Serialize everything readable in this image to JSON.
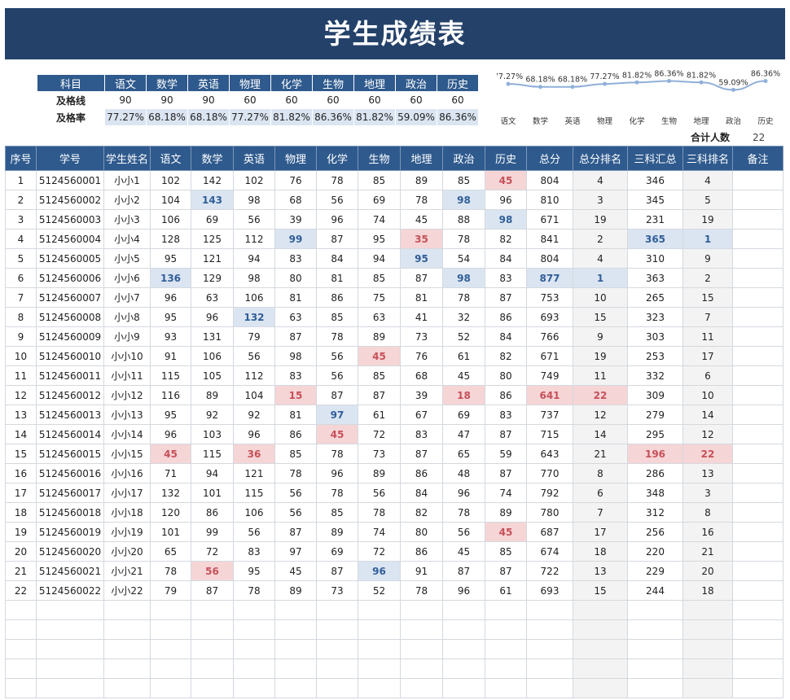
{
  "title": "学生成绩表",
  "summary": {
    "header_label": "科目",
    "subjects": [
      "语文",
      "数学",
      "英语",
      "物理",
      "化学",
      "生物",
      "地理",
      "政治",
      "历史"
    ],
    "pass_line_label": "及格线",
    "pass_lines": [
      "90",
      "90",
      "90",
      "60",
      "60",
      "60",
      "60",
      "60",
      "60"
    ],
    "pass_rate_label": "及格率",
    "pass_rates": [
      "77.27%",
      "68.18%",
      "68.18%",
      "77.27%",
      "81.82%",
      "86.36%",
      "81.82%",
      "59.09%",
      "86.36%"
    ]
  },
  "chart_data": {
    "type": "line",
    "categories": [
      "语文",
      "数学",
      "英语",
      "物理",
      "化学",
      "生物",
      "地理",
      "政治",
      "历史"
    ],
    "values": [
      77.27,
      68.18,
      68.18,
      77.27,
      81.82,
      86.36,
      81.82,
      59.09,
      86.36
    ],
    "data_labels": [
      "77.27%",
      "68.18%",
      "68.18%",
      "77.27%",
      "81.82%",
      "86.36%",
      "81.82%",
      "59.09%",
      "86.36%"
    ],
    "title": "",
    "xlabel": "",
    "ylabel": "",
    "grid": false,
    "line_color": "#8fb0d8"
  },
  "total": {
    "label": "合计人数",
    "value": "22"
  },
  "table": {
    "headers": [
      "序号",
      "学号",
      "学生姓名",
      "语文",
      "数学",
      "英语",
      "物理",
      "化学",
      "生物",
      "地理",
      "政治",
      "历史",
      "总分",
      "总分排名",
      "三科汇总",
      "三科排名",
      "备注"
    ],
    "rows": [
      [
        "1",
        "5124560001",
        "小小1",
        "102",
        "142",
        "102",
        "76",
        "78",
        "85",
        "89",
        "85",
        "45",
        "804",
        "4",
        "346",
        "4",
        ""
      ],
      [
        "2",
        "5124560002",
        "小小2",
        "104",
        "143",
        "98",
        "68",
        "56",
        "69",
        "78",
        "98",
        "96",
        "810",
        "3",
        "345",
        "5",
        ""
      ],
      [
        "3",
        "5124560003",
        "小小3",
        "106",
        "69",
        "56",
        "39",
        "96",
        "74",
        "45",
        "88",
        "98",
        "671",
        "19",
        "231",
        "19",
        ""
      ],
      [
        "4",
        "5124560004",
        "小小4",
        "128",
        "125",
        "112",
        "99",
        "87",
        "95",
        "35",
        "78",
        "82",
        "841",
        "2",
        "365",
        "1",
        ""
      ],
      [
        "5",
        "5124560005",
        "小小5",
        "95",
        "121",
        "94",
        "83",
        "84",
        "94",
        "95",
        "54",
        "84",
        "804",
        "4",
        "310",
        "9",
        ""
      ],
      [
        "6",
        "5124560006",
        "小小6",
        "136",
        "129",
        "98",
        "80",
        "81",
        "85",
        "87",
        "98",
        "83",
        "877",
        "1",
        "363",
        "2",
        ""
      ],
      [
        "7",
        "5124560007",
        "小小7",
        "96",
        "63",
        "106",
        "81",
        "86",
        "75",
        "81",
        "78",
        "87",
        "753",
        "10",
        "265",
        "15",
        ""
      ],
      [
        "8",
        "5124560008",
        "小小8",
        "95",
        "96",
        "132",
        "63",
        "85",
        "63",
        "41",
        "32",
        "86",
        "693",
        "15",
        "323",
        "7",
        ""
      ],
      [
        "9",
        "5124560009",
        "小小9",
        "93",
        "131",
        "79",
        "87",
        "78",
        "89",
        "73",
        "52",
        "84",
        "766",
        "9",
        "303",
        "11",
        ""
      ],
      [
        "10",
        "5124560010",
        "小小10",
        "91",
        "106",
        "56",
        "98",
        "56",
        "45",
        "76",
        "61",
        "82",
        "671",
        "19",
        "253",
        "17",
        ""
      ],
      [
        "11",
        "5124560011",
        "小小11",
        "115",
        "105",
        "112",
        "83",
        "56",
        "85",
        "68",
        "45",
        "80",
        "749",
        "11",
        "332",
        "6",
        ""
      ],
      [
        "12",
        "5124560012",
        "小小12",
        "116",
        "89",
        "104",
        "15",
        "87",
        "87",
        "39",
        "18",
        "86",
        "641",
        "22",
        "309",
        "10",
        ""
      ],
      [
        "13",
        "5124560013",
        "小小13",
        "95",
        "92",
        "92",
        "81",
        "97",
        "61",
        "67",
        "69",
        "83",
        "737",
        "12",
        "279",
        "14",
        ""
      ],
      [
        "14",
        "5124560014",
        "小小14",
        "96",
        "103",
        "96",
        "86",
        "45",
        "72",
        "83",
        "47",
        "87",
        "715",
        "14",
        "295",
        "12",
        ""
      ],
      [
        "15",
        "5124560015",
        "小小15",
        "45",
        "115",
        "36",
        "85",
        "78",
        "73",
        "87",
        "65",
        "59",
        "643",
        "21",
        "196",
        "22",
        ""
      ],
      [
        "16",
        "5124560016",
        "小小16",
        "71",
        "94",
        "121",
        "78",
        "96",
        "89",
        "86",
        "48",
        "87",
        "770",
        "8",
        "286",
        "13",
        ""
      ],
      [
        "17",
        "5124560017",
        "小小17",
        "132",
        "101",
        "115",
        "56",
        "78",
        "56",
        "84",
        "96",
        "74",
        "792",
        "6",
        "348",
        "3",
        ""
      ],
      [
        "18",
        "5124560018",
        "小小18",
        "120",
        "86",
        "106",
        "56",
        "85",
        "78",
        "82",
        "78",
        "89",
        "780",
        "7",
        "312",
        "8",
        ""
      ],
      [
        "19",
        "5124560019",
        "小小19",
        "101",
        "99",
        "56",
        "87",
        "89",
        "74",
        "80",
        "56",
        "45",
        "687",
        "17",
        "256",
        "16",
        ""
      ],
      [
        "20",
        "5124560020",
        "小小20",
        "65",
        "72",
        "83",
        "97",
        "69",
        "72",
        "86",
        "45",
        "85",
        "674",
        "18",
        "220",
        "21",
        ""
      ],
      [
        "21",
        "5124560021",
        "小小21",
        "78",
        "56",
        "95",
        "45",
        "87",
        "96",
        "91",
        "87",
        "87",
        "722",
        "13",
        "229",
        "20",
        ""
      ],
      [
        "22",
        "5124560022",
        "小小22",
        "79",
        "87",
        "78",
        "89",
        "73",
        "52",
        "78",
        "96",
        "61",
        "693",
        "15",
        "244",
        "18",
        ""
      ]
    ],
    "highlights": [
      {
        "r": 0,
        "c": 11,
        "t": "lo"
      },
      {
        "r": 1,
        "c": 4,
        "t": "hi"
      },
      {
        "r": 1,
        "c": 10,
        "t": "hi"
      },
      {
        "r": 2,
        "c": 11,
        "t": "hi"
      },
      {
        "r": 3,
        "c": 6,
        "t": "hi"
      },
      {
        "r": 3,
        "c": 9,
        "t": "lo"
      },
      {
        "r": 3,
        "c": 14,
        "t": "hi"
      },
      {
        "r": 3,
        "c": 15,
        "t": "hi"
      },
      {
        "r": 4,
        "c": 9,
        "t": "hi"
      },
      {
        "r": 5,
        "c": 3,
        "t": "hi"
      },
      {
        "r": 5,
        "c": 10,
        "t": "hi"
      },
      {
        "r": 5,
        "c": 12,
        "t": "hi"
      },
      {
        "r": 5,
        "c": 13,
        "t": "hi"
      },
      {
        "r": 7,
        "c": 5,
        "t": "hi"
      },
      {
        "r": 9,
        "c": 8,
        "t": "lo"
      },
      {
        "r": 11,
        "c": 6,
        "t": "lo"
      },
      {
        "r": 11,
        "c": 10,
        "t": "lo"
      },
      {
        "r": 11,
        "c": 12,
        "t": "lo"
      },
      {
        "r": 11,
        "c": 13,
        "t": "lo"
      },
      {
        "r": 12,
        "c": 7,
        "t": "hi"
      },
      {
        "r": 13,
        "c": 7,
        "t": "lo"
      },
      {
        "r": 14,
        "c": 3,
        "t": "lo"
      },
      {
        "r": 14,
        "c": 5,
        "t": "lo"
      },
      {
        "r": 14,
        "c": 14,
        "t": "lo"
      },
      {
        "r": 14,
        "c": 15,
        "t": "lo"
      },
      {
        "r": 18,
        "c": 11,
        "t": "lo"
      },
      {
        "r": 20,
        "c": 4,
        "t": "lo"
      },
      {
        "r": 20,
        "c": 8,
        "t": "hi"
      }
    ],
    "empty_rows": 5
  }
}
